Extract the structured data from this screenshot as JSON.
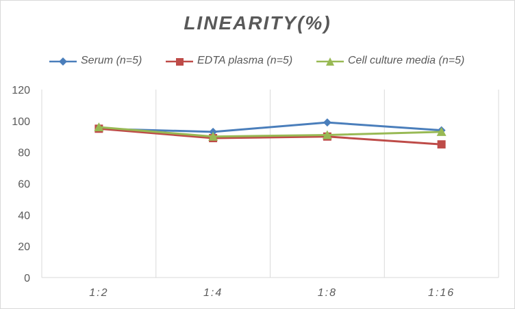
{
  "chart_data": {
    "type": "line",
    "title": "LINEARITY(%)",
    "categories": [
      "1:2",
      "1:4",
      "1:8",
      "1:16"
    ],
    "series": [
      {
        "name": "Serum (n=5)",
        "values": [
          95,
          93,
          99,
          94
        ],
        "color": "#4a7ebb",
        "marker": "diamond"
      },
      {
        "name": "EDTA plasma (n=5)",
        "values": [
          95,
          89,
          90,
          85
        ],
        "color": "#be4b48",
        "marker": "square"
      },
      {
        "name": "Cell culture media (n=5)",
        "values": [
          96,
          90,
          91,
          93
        ],
        "color": "#98b954",
        "marker": "triangle"
      }
    ],
    "yticks": [
      0,
      20,
      40,
      60,
      80,
      100,
      120
    ],
    "ylim": [
      0,
      120
    ],
    "grid": "vertical",
    "legend": "top"
  }
}
